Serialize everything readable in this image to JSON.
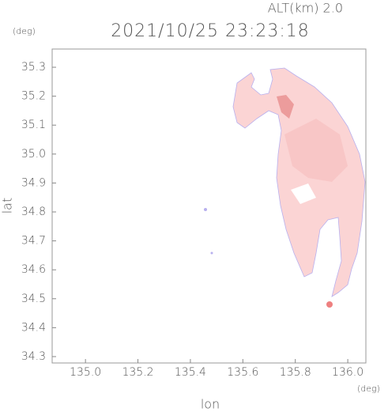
{
  "chart_data": {
    "type": "map",
    "title": "2021/10/25 23:23:18",
    "subtitle": "ALT(km) 2.0",
    "y_unit": "(deg)",
    "x_unit": "(deg)",
    "x_label": "lon",
    "y_label": "lat",
    "xlim": [
      134.873,
      136.069
    ],
    "ylim": [
      34.278,
      35.363
    ],
    "xticks": [
      {
        "value": 135.0,
        "label": "135.0"
      },
      135.2,
      135.4,
      135.6,
      135.8,
      {
        "value": 136.0,
        "label": "136.0"
      }
    ],
    "yticks": [
      34.3,
      34.4,
      34.5,
      34.6,
      34.7,
      34.8,
      34.9,
      {
        "value": 35.0,
        "label": "35.0"
      },
      35.1,
      35.2,
      35.3
    ]
  }
}
